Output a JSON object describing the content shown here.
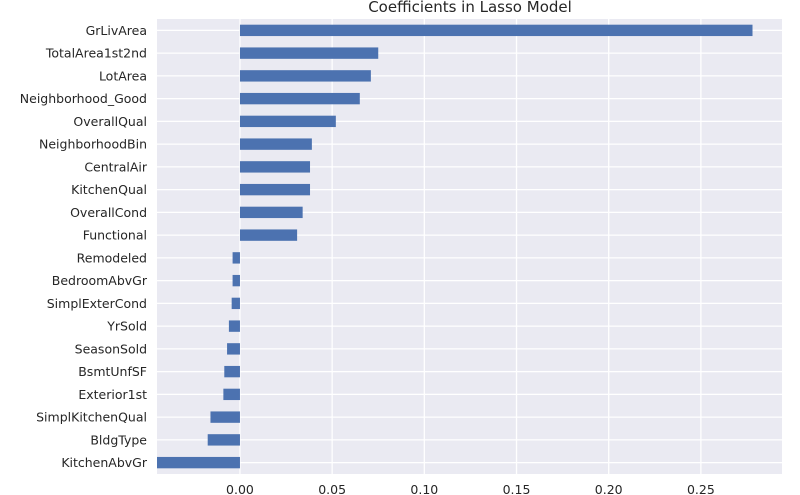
{
  "chart_data": {
    "type": "bar",
    "orientation": "horizontal",
    "title": "Coefficients in Lasso Model",
    "xlabel": "",
    "ylabel": "",
    "categories": [
      "GrLivArea",
      "TotalArea1st2nd",
      "LotArea",
      "Neighborhood_Good",
      "OverallQual",
      "NeighborhoodBin",
      "CentralAir",
      "KitchenQual",
      "OverallCond",
      "Functional",
      "Remodeled",
      "BedroomAbvGr",
      "SimplExterCond",
      "YrSold",
      "SeasonSold",
      "BsmtUnfSF",
      "Exterior1st",
      "SimplKitchenQual",
      "BldgType",
      "KitchenAbvGr"
    ],
    "values": [
      0.278,
      0.075,
      0.071,
      0.065,
      0.052,
      0.039,
      0.038,
      0.038,
      0.034,
      0.031,
      -0.004,
      -0.004,
      -0.0045,
      -0.006,
      -0.007,
      -0.0085,
      -0.009,
      -0.016,
      -0.0175,
      -0.045
    ],
    "xlim": [
      -0.045,
      0.294
    ],
    "xticks": [
      0.0,
      0.05,
      0.1,
      0.15,
      0.2,
      0.25
    ],
    "xtick_labels": [
      "0.00",
      "0.05",
      "0.10",
      "0.15",
      "0.20",
      "0.25"
    ],
    "grid": true,
    "bar_color": "#4c72b0",
    "background_color": "#eaeaf2",
    "grid_color": "#ffffff"
  }
}
